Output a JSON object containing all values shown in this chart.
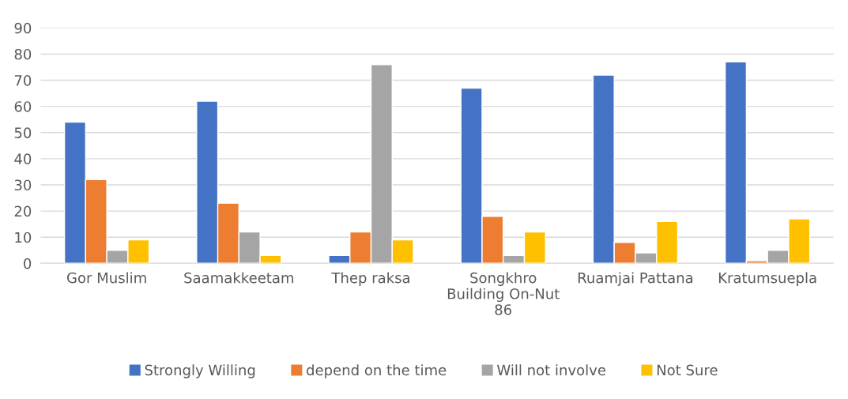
{
  "chart_data": {
    "type": "bar",
    "categories": [
      "Gor Muslim",
      "Saamakkeetam",
      "Thep raksa",
      "Songkhro\nBuilding On-Nut\n86",
      "Ruamjai Pattana",
      "Kratumsuepla"
    ],
    "series": [
      {
        "name": "Strongly Willing",
        "color": "#4472c4",
        "values": [
          54,
          62,
          3,
          67,
          72,
          77
        ]
      },
      {
        "name": "depend on the time",
        "color": "#ed7d31",
        "values": [
          32,
          23,
          12,
          18,
          8,
          1
        ]
      },
      {
        "name": "Will not involve",
        "color": "#a5a5a5",
        "values": [
          5,
          12,
          76,
          3,
          4,
          5
        ]
      },
      {
        "name": "Not Sure",
        "color": "#ffc000",
        "values": [
          9,
          3,
          9,
          12,
          16,
          17
        ]
      }
    ],
    "ylim": [
      0,
      90
    ],
    "yticks": [
      0,
      10,
      20,
      30,
      40,
      50,
      60,
      70,
      80,
      90
    ],
    "grid": "y",
    "legend": "bottom"
  }
}
